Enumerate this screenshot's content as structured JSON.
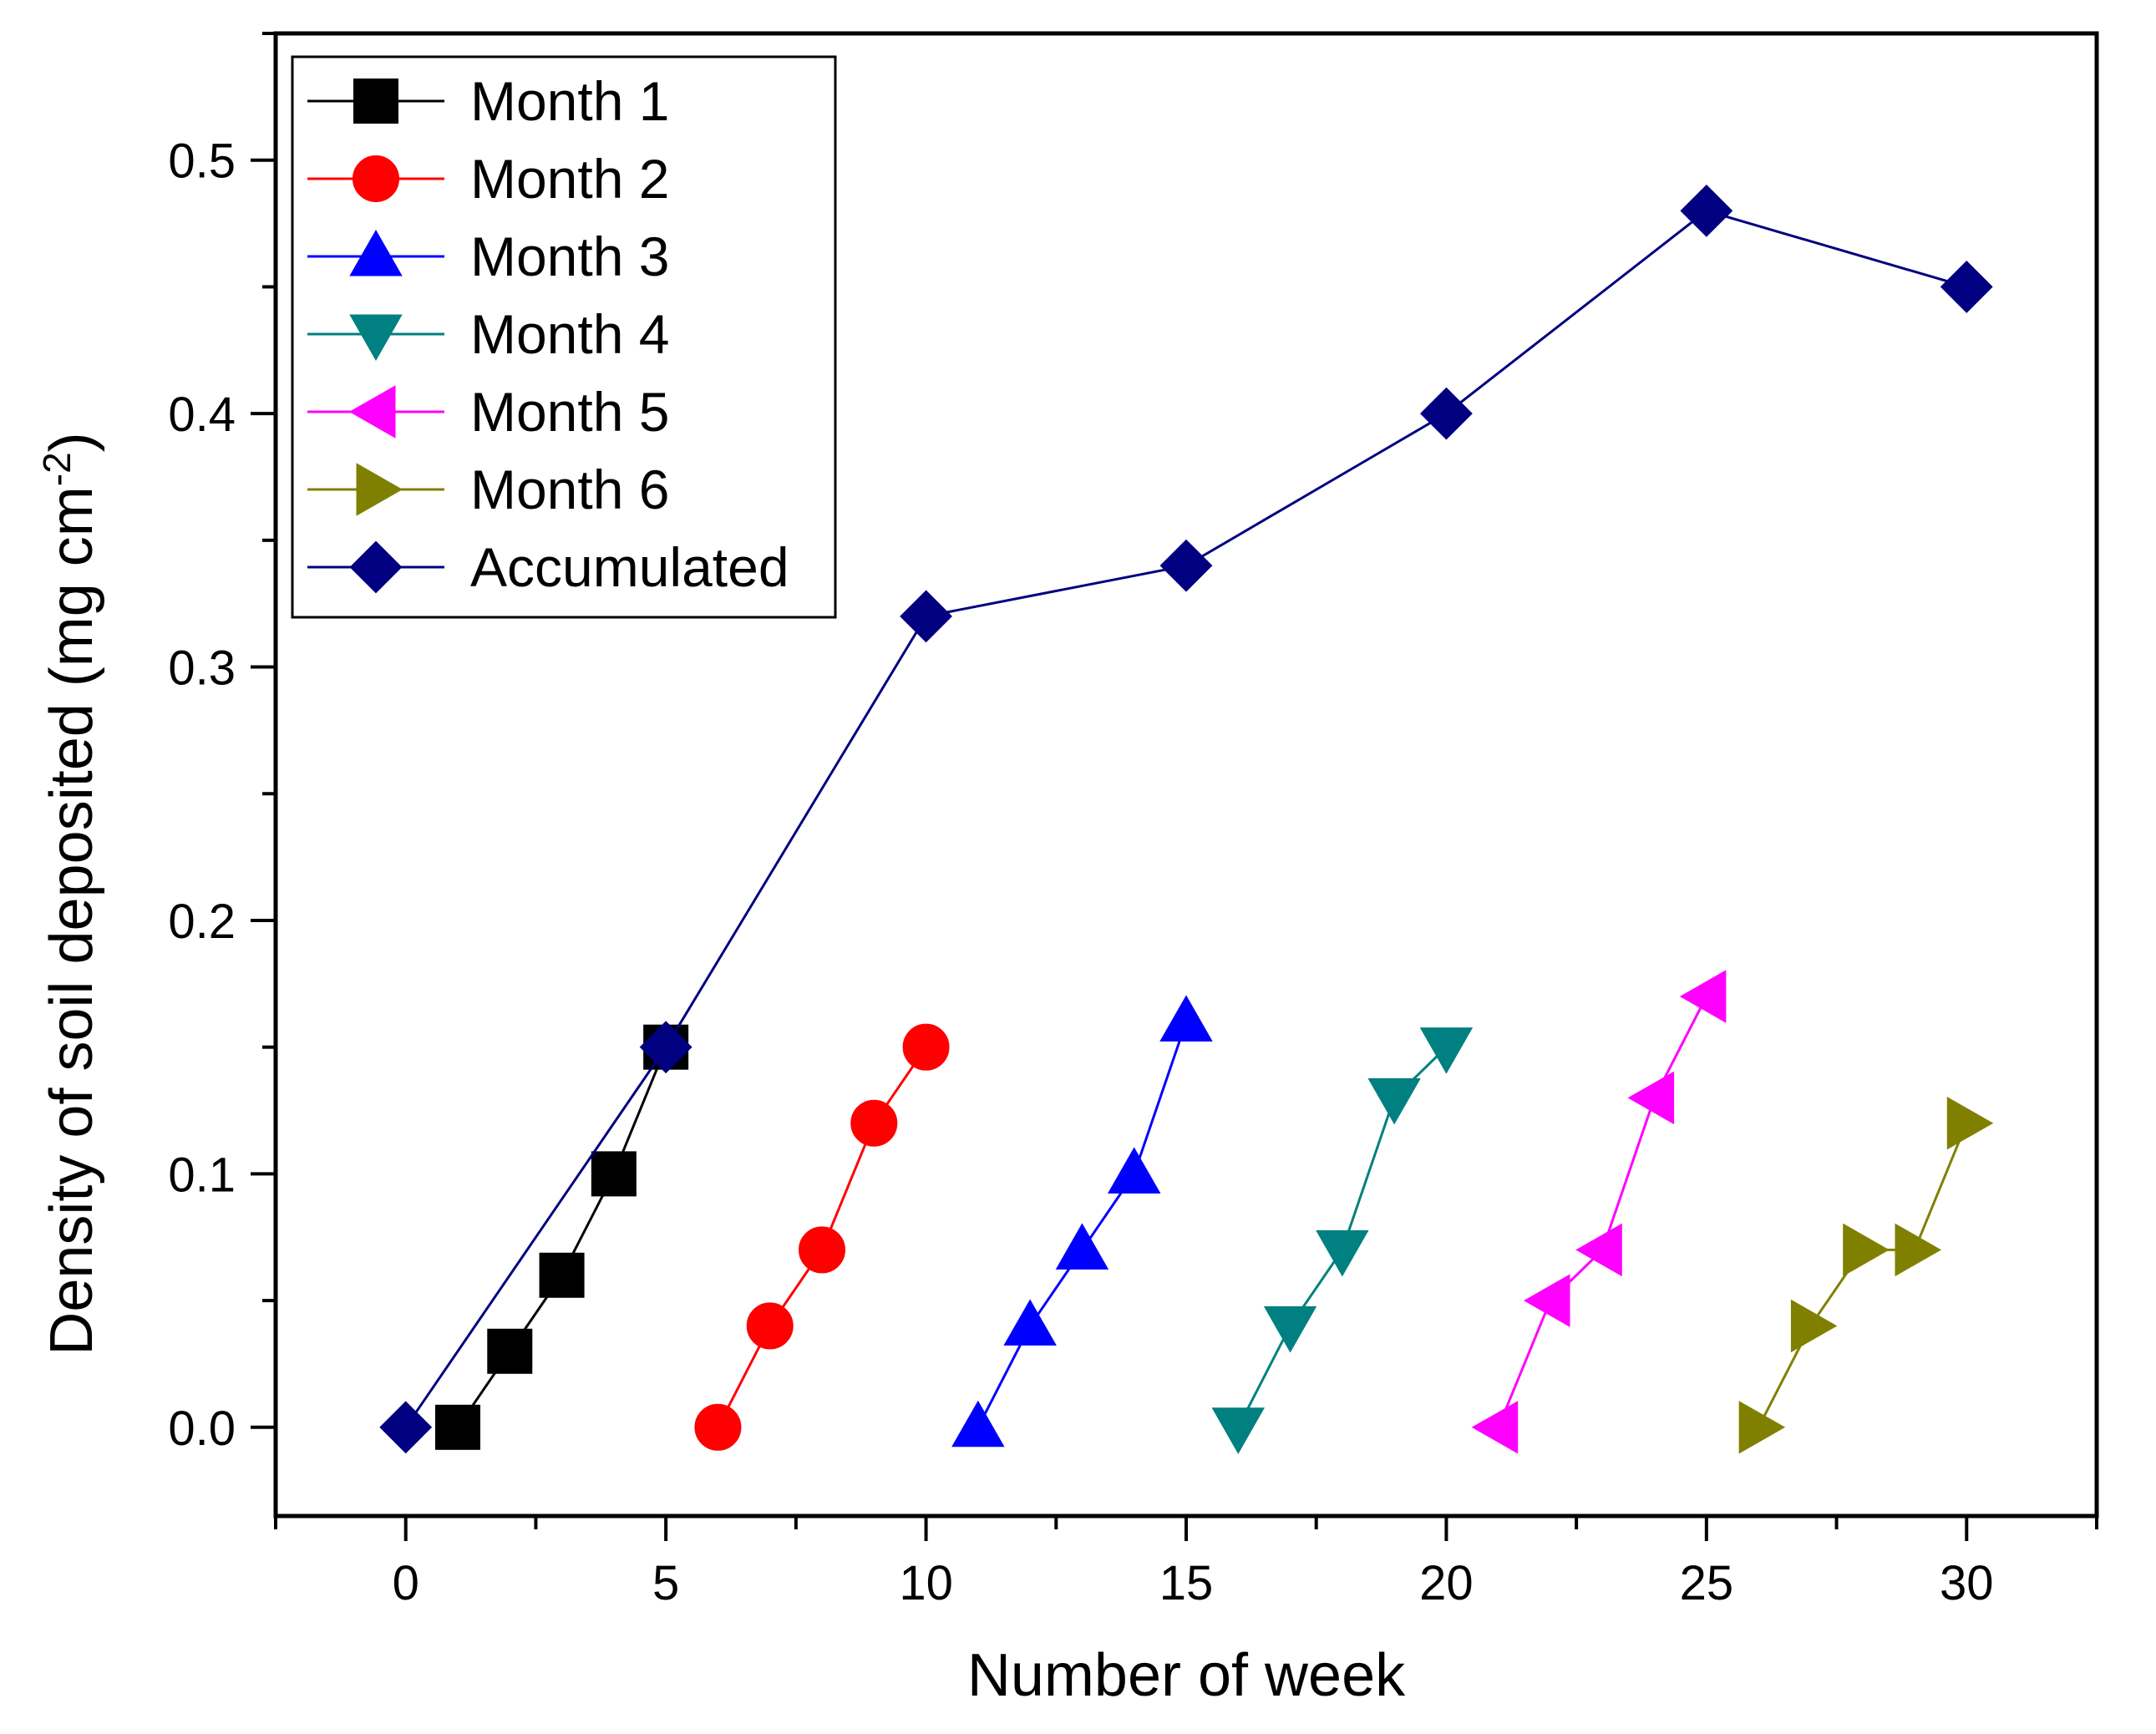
{
  "chart_data": {
    "type": "line",
    "title": "",
    "xlabel": "Number of week",
    "ylabel": {
      "main": "Density of soil  deposited (mg cm",
      "superscript": "-2",
      "close": ")"
    },
    "xlim": [
      -2.5,
      32.5
    ],
    "ylim": [
      -0.035,
      0.55
    ],
    "x_ticks": [
      0,
      5,
      10,
      15,
      20,
      25,
      30
    ],
    "x_minor_ticks": [
      -2.5,
      2.5,
      7.5,
      12.5,
      17.5,
      22.5,
      27.5,
      32.5
    ],
    "y_ticks": [
      0.0,
      0.1,
      0.2,
      0.3,
      0.4,
      0.5
    ],
    "y_tick_labels": [
      "0.0",
      "0.1",
      "0.2",
      "0.3",
      "0.4",
      "0.5"
    ],
    "y_minor_ticks": [
      0.05,
      0.15,
      0.25,
      0.35,
      0.45,
      0.55
    ],
    "grid": false,
    "legend_position": "top-left",
    "series": [
      {
        "name": "Month 1",
        "color": "#000000",
        "marker": "square",
        "x": [
          1,
          2,
          3,
          4,
          5
        ],
        "y": [
          0.0,
          0.03,
          0.06,
          0.1,
          0.15
        ]
      },
      {
        "name": "Month 2",
        "color": "#ff0000",
        "marker": "circle",
        "x": [
          6,
          7,
          8,
          9,
          10
        ],
        "y": [
          0.0,
          0.04,
          0.07,
          0.12,
          0.15
        ]
      },
      {
        "name": "Month 3",
        "color": "#0000ff",
        "marker": "triangle-up",
        "x": [
          11,
          12,
          13,
          14,
          15
        ],
        "y": [
          0.0,
          0.04,
          0.07,
          0.1,
          0.16
        ]
      },
      {
        "name": "Month 4",
        "color": "#008080",
        "marker": "triangle-down",
        "x": [
          16,
          17,
          18,
          19,
          20
        ],
        "y": [
          0.0,
          0.04,
          0.07,
          0.13,
          0.15
        ]
      },
      {
        "name": "Month 5",
        "color": "#ff00ff",
        "marker": "triangle-left",
        "x": [
          21,
          22,
          23,
          24,
          25
        ],
        "y": [
          0.0,
          0.05,
          0.07,
          0.13,
          0.17
        ]
      },
      {
        "name": "Month 6",
        "color": "#808000",
        "marker": "triangle-right",
        "x": [
          26,
          27,
          28,
          29,
          30
        ],
        "y": [
          0.0,
          0.04,
          0.07,
          0.07,
          0.12
        ]
      },
      {
        "name": "Accumulated",
        "color": "#000080",
        "marker": "diamond",
        "x": [
          0,
          5,
          10,
          15,
          20,
          25,
          30
        ],
        "y": [
          0.0,
          0.15,
          0.32,
          0.34,
          0.4,
          0.48,
          0.45
        ]
      }
    ]
  }
}
